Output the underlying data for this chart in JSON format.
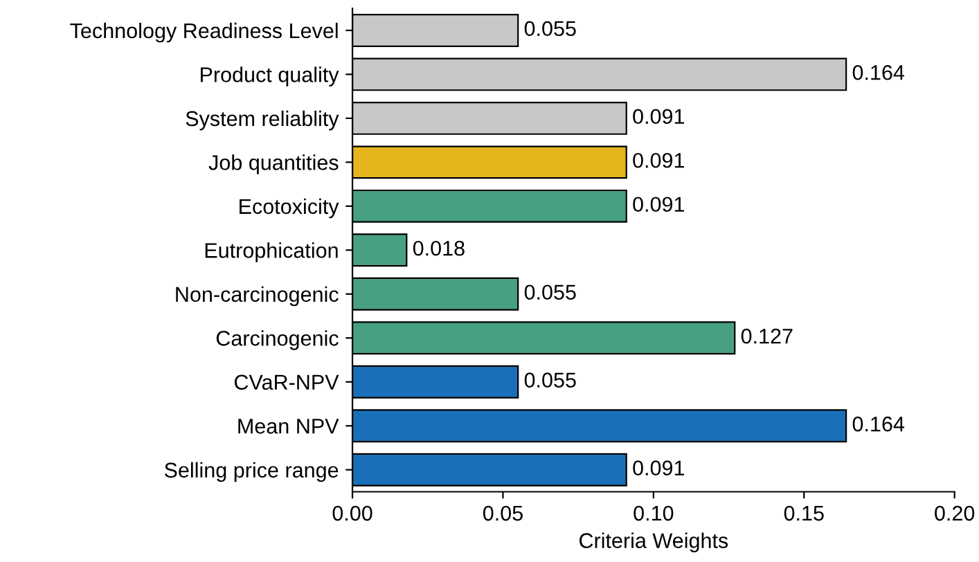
{
  "chart_data": {
    "type": "bar",
    "orientation": "horizontal",
    "xlabel": "Criteria Weights",
    "categories": [
      "Technology Readiness Level",
      "Product quality",
      "System reliablity",
      "Job quantities",
      "Ecotoxicity",
      "Eutrophication",
      "Non-carcinogenic",
      "Carcinogenic",
      "CVaR-NPV",
      "Mean NPV",
      "Selling price range"
    ],
    "values": [
      0.055,
      0.164,
      0.091,
      0.091,
      0.091,
      0.018,
      0.055,
      0.127,
      0.055,
      0.164,
      0.091
    ],
    "colors": [
      "#c8c8c8",
      "#c8c8c8",
      "#c8c8c8",
      "#e6b51e",
      "#47a082",
      "#47a082",
      "#47a082",
      "#47a082",
      "#1a70b8",
      "#1a70b8",
      "#1a70b8"
    ],
    "xlim": [
      0,
      0.2
    ],
    "xticks": [
      {
        "value": 0,
        "label": "0.00"
      },
      {
        "value": 0.05,
        "label": "0.05"
      },
      {
        "value": 0.1,
        "label": "0.10"
      },
      {
        "value": 0.15,
        "label": "0.15"
      },
      {
        "value": 0.2,
        "label": "0.20"
      }
    ],
    "data_labels": true,
    "grid": false,
    "legend": false
  }
}
